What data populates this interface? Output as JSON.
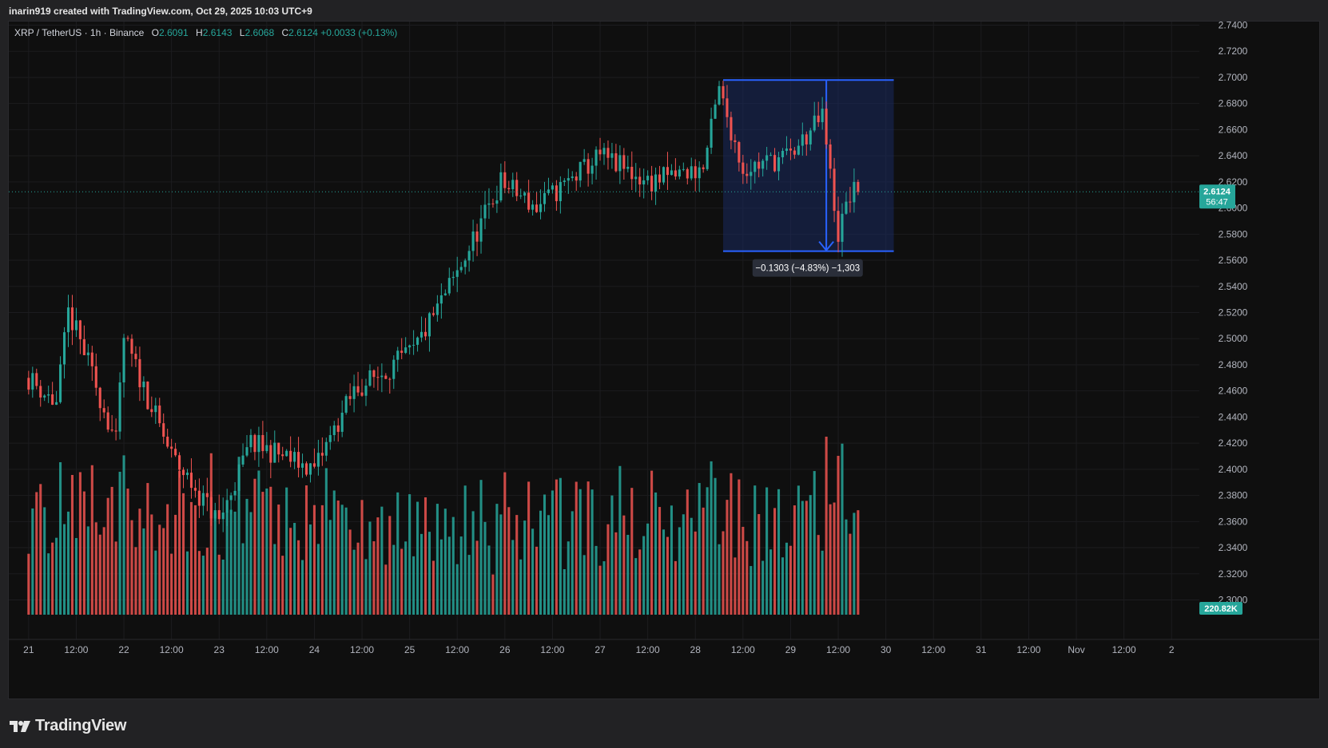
{
  "header": {
    "text": "inarin919 created with TradingView.com, Oct 29, 2025 10:03 UTC+9"
  },
  "legend": {
    "symbol": "XRP / TetherUS · 1h · Binance",
    "o_label": "O",
    "o": "2.6091",
    "h_label": "H",
    "h": "2.6143",
    "l_label": "L",
    "l": "2.6068",
    "c_label": "C",
    "c": "2.6124",
    "change": "+0.0033 (+0.13%)"
  },
  "price_tag": {
    "price": "2.6124",
    "countdown": "56:47"
  },
  "volume_tag": "220.82K",
  "measure_label": "−0.1303 (−4.83%) −1,303",
  "brand": {
    "name": "TradingView"
  },
  "colors": {
    "up": "#26a69a",
    "down": "#ef5350",
    "background": "#0f0f0f",
    "measure": "#2962ff"
  },
  "chart_data": {
    "type": "candlestick",
    "y_ticks": [
      "2.7400",
      "2.7200",
      "2.7000",
      "2.6800",
      "2.6600",
      "2.6400",
      "2.6200",
      "2.6000",
      "2.5800",
      "2.5600",
      "2.5400",
      "2.5200",
      "2.5000",
      "2.4800",
      "2.4600",
      "2.4400",
      "2.4200",
      "2.4000",
      "2.3800",
      "2.3600",
      "2.3400",
      "2.3200",
      "2.3000"
    ],
    "y_range": [
      2.3,
      2.74
    ],
    "x_ticks": [
      "21",
      "12:00",
      "22",
      "12:00",
      "23",
      "12:00",
      "24",
      "12:00",
      "25",
      "12:00",
      "26",
      "12:00",
      "27",
      "12:00",
      "28",
      "12:00",
      "29",
      "12:00",
      "30",
      "12:00",
      "31",
      "12:00",
      "Nov",
      "12:00",
      "2"
    ],
    "key_prices": [
      {
        "hour": 0,
        "price": 2.47
      },
      {
        "hour": 7,
        "price": 2.45
      },
      {
        "hour": 10,
        "price": 2.52
      },
      {
        "hour": 14,
        "price": 2.49
      },
      {
        "hour": 22,
        "price": 2.42
      },
      {
        "hour": 24,
        "price": 2.5
      },
      {
        "hour": 36,
        "price": 2.41
      },
      {
        "hour": 48,
        "price": 2.36
      },
      {
        "hour": 56,
        "price": 2.42
      },
      {
        "hour": 72,
        "price": 2.4
      },
      {
        "hour": 82,
        "price": 2.46
      },
      {
        "hour": 97,
        "price": 2.49
      },
      {
        "hour": 108,
        "price": 2.55
      },
      {
        "hour": 119,
        "price": 2.62
      },
      {
        "hour": 128,
        "price": 2.6
      },
      {
        "hour": 144,
        "price": 2.64
      },
      {
        "hour": 156,
        "price": 2.62
      },
      {
        "hour": 170,
        "price": 2.63
      },
      {
        "hour": 174,
        "price": 2.69
      },
      {
        "hour": 180,
        "price": 2.63
      },
      {
        "hour": 192,
        "price": 2.64
      },
      {
        "hour": 200,
        "price": 2.67
      },
      {
        "hour": 204,
        "price": 2.58
      },
      {
        "hour": 207,
        "price": 2.61
      },
      {
        "hour": 209,
        "price": 2.6124
      }
    ],
    "last_hour": 209,
    "x_range_hours": [
      -5,
      295
    ],
    "measure": {
      "start_hour": 175,
      "end_hour": 218,
      "top": 2.698,
      "bottom": 2.567,
      "low_hour": 201
    },
    "volume_peak": 450,
    "volume_scale_note": "volume drawn on bottom 30%"
  }
}
